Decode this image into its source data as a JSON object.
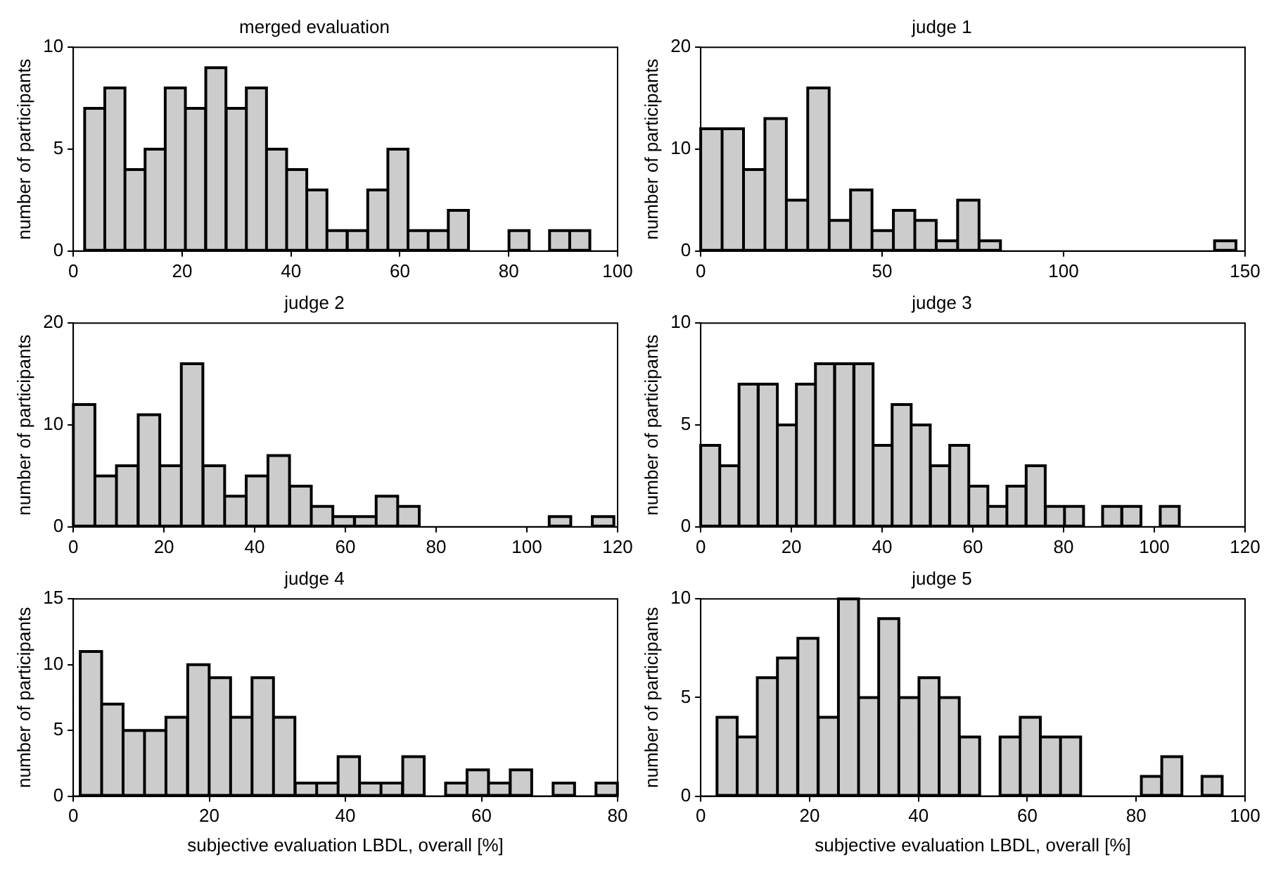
{
  "chart_data": [
    {
      "type": "histogram",
      "title": "merged evaluation",
      "ylabel": "number of participants",
      "color": "#cccccc",
      "bins": [
        2.1,
        5.8,
        9.5,
        13.2,
        16.9,
        20.6,
        24.3,
        28.1,
        31.8,
        35.5,
        39.2,
        42.9,
        46.6,
        50.3,
        54.1,
        57.8,
        61.5,
        65.2,
        68.9,
        72.6,
        76.3,
        80.0,
        83.8,
        87.5,
        91.2,
        94.9
      ],
      "values": [
        7,
        8,
        4,
        5,
        8,
        7,
        9,
        7,
        8,
        5,
        4,
        3,
        1,
        1,
        3,
        5,
        1,
        1,
        2,
        0,
        0,
        1,
        0,
        1,
        1
      ],
      "xlim": [
        0,
        100
      ],
      "xticks": [
        0,
        20,
        40,
        60,
        80,
        100
      ],
      "ylim": [
        0,
        10
      ],
      "yticks": [
        0,
        5,
        10
      ]
    },
    {
      "type": "histogram",
      "title": "judge 1",
      "ylabel": "number of participants",
      "color": "#cccccc",
      "bins": [
        0,
        5.9,
        11.8,
        17.7,
        23.6,
        29.5,
        35.4,
        41.3,
        47.2,
        53.1,
        59.0,
        64.9,
        70.8,
        76.7,
        82.6,
        88.5,
        94.4,
        100.3,
        106.2,
        112.1,
        118.0,
        123.9,
        129.8,
        135.7,
        141.6,
        147.5
      ],
      "values": [
        12,
        12,
        8,
        13,
        5,
        16,
        3,
        6,
        2,
        4,
        3,
        1,
        5,
        1,
        0,
        0,
        0,
        0,
        0,
        0,
        0,
        0,
        0,
        0,
        1
      ],
      "xlim": [
        0,
        150
      ],
      "xticks": [
        0,
        50,
        100,
        150
      ],
      "ylim": [
        0,
        20
      ],
      "yticks": [
        0,
        10,
        20
      ]
    },
    {
      "type": "histogram",
      "title": "judge 2",
      "ylabel": "number of participants",
      "color": "#cccccc",
      "bins": [
        0,
        4.8,
        9.5,
        14.3,
        19.1,
        23.8,
        28.6,
        33.4,
        38.1,
        42.9,
        47.7,
        52.5,
        57.2,
        62.0,
        66.8,
        71.5,
        76.3,
        81.1,
        85.8,
        90.6,
        95.4,
        100.1,
        104.9,
        109.7,
        114.4,
        119.2
      ],
      "values": [
        12,
        5,
        6,
        11,
        6,
        16,
        6,
        3,
        5,
        7,
        4,
        2,
        1,
        1,
        3,
        2,
        0,
        0,
        0,
        0,
        0,
        0,
        1,
        0,
        1
      ],
      "xlim": [
        0,
        120
      ],
      "xticks": [
        0,
        20,
        40,
        60,
        80,
        100,
        120
      ],
      "ylim": [
        0,
        20
      ],
      "yticks": [
        0,
        10,
        20
      ]
    },
    {
      "type": "histogram",
      "title": "judge 3",
      "ylabel": "number of participants",
      "color": "#cccccc",
      "bins": [
        0,
        4.2,
        8.4,
        12.7,
        16.9,
        21.1,
        25.3,
        29.5,
        33.8,
        38.0,
        42.2,
        46.4,
        50.6,
        54.9,
        59.1,
        63.3,
        67.5,
        71.7,
        76.0,
        80.2,
        84.4,
        88.6,
        92.8,
        97.1,
        101.3,
        105.5
      ],
      "values": [
        4,
        3,
        7,
        7,
        5,
        7,
        8,
        8,
        8,
        4,
        6,
        5,
        3,
        4,
        2,
        1,
        2,
        3,
        1,
        1,
        0,
        1,
        1,
        0,
        1
      ],
      "xlim": [
        0,
        120
      ],
      "xticks": [
        0,
        20,
        40,
        60,
        80,
        100,
        120
      ],
      "ylim": [
        0,
        10
      ],
      "yticks": [
        0,
        5,
        10
      ]
    },
    {
      "type": "histogram",
      "title": "judge 4",
      "xlabel": "subjective evaluation LBDL, overall [%]",
      "ylabel": "number of participants",
      "color": "#cccccc",
      "bins": [
        1.0,
        4.2,
        7.3,
        10.5,
        13.6,
        16.8,
        20.0,
        23.1,
        26.3,
        29.4,
        32.6,
        35.8,
        38.9,
        42.1,
        45.2,
        48.4,
        51.6,
        54.7,
        57.9,
        61.0,
        64.2,
        67.4,
        70.5,
        73.7,
        76.8,
        80.0
      ],
      "values": [
        11,
        7,
        5,
        5,
        6,
        10,
        9,
        6,
        9,
        6,
        1,
        1,
        3,
        1,
        1,
        3,
        0,
        1,
        2,
        1,
        2,
        0,
        1,
        0,
        1
      ],
      "xlim": [
        0,
        80
      ],
      "xticks": [
        0,
        20,
        40,
        60,
        80
      ],
      "ylim": [
        0,
        15
      ],
      "yticks": [
        0,
        5,
        10,
        15
      ]
    },
    {
      "type": "histogram",
      "title": "judge 5",
      "xlabel": "subjective evaluation LBDL, overall [%]",
      "ylabel": "number of participants",
      "color": "#cccccc",
      "bins": [
        3.0,
        6.7,
        10.4,
        14.1,
        17.8,
        21.6,
        25.3,
        29.0,
        32.7,
        36.4,
        40.1,
        43.8,
        47.5,
        51.3,
        55.0,
        58.7,
        62.4,
        66.1,
        69.8,
        73.5,
        77.2,
        80.9,
        84.7,
        88.4,
        92.1,
        95.8
      ],
      "values": [
        4,
        3,
        6,
        7,
        8,
        4,
        10,
        5,
        9,
        5,
        6,
        5,
        3,
        0,
        3,
        4,
        3,
        3,
        0,
        0,
        0,
        1,
        2,
        0,
        1
      ],
      "xlim": [
        0,
        100
      ],
      "xticks": [
        0,
        20,
        40,
        60,
        80,
        100
      ],
      "ylim": [
        0,
        10
      ],
      "yticks": [
        0,
        5,
        10
      ]
    }
  ]
}
